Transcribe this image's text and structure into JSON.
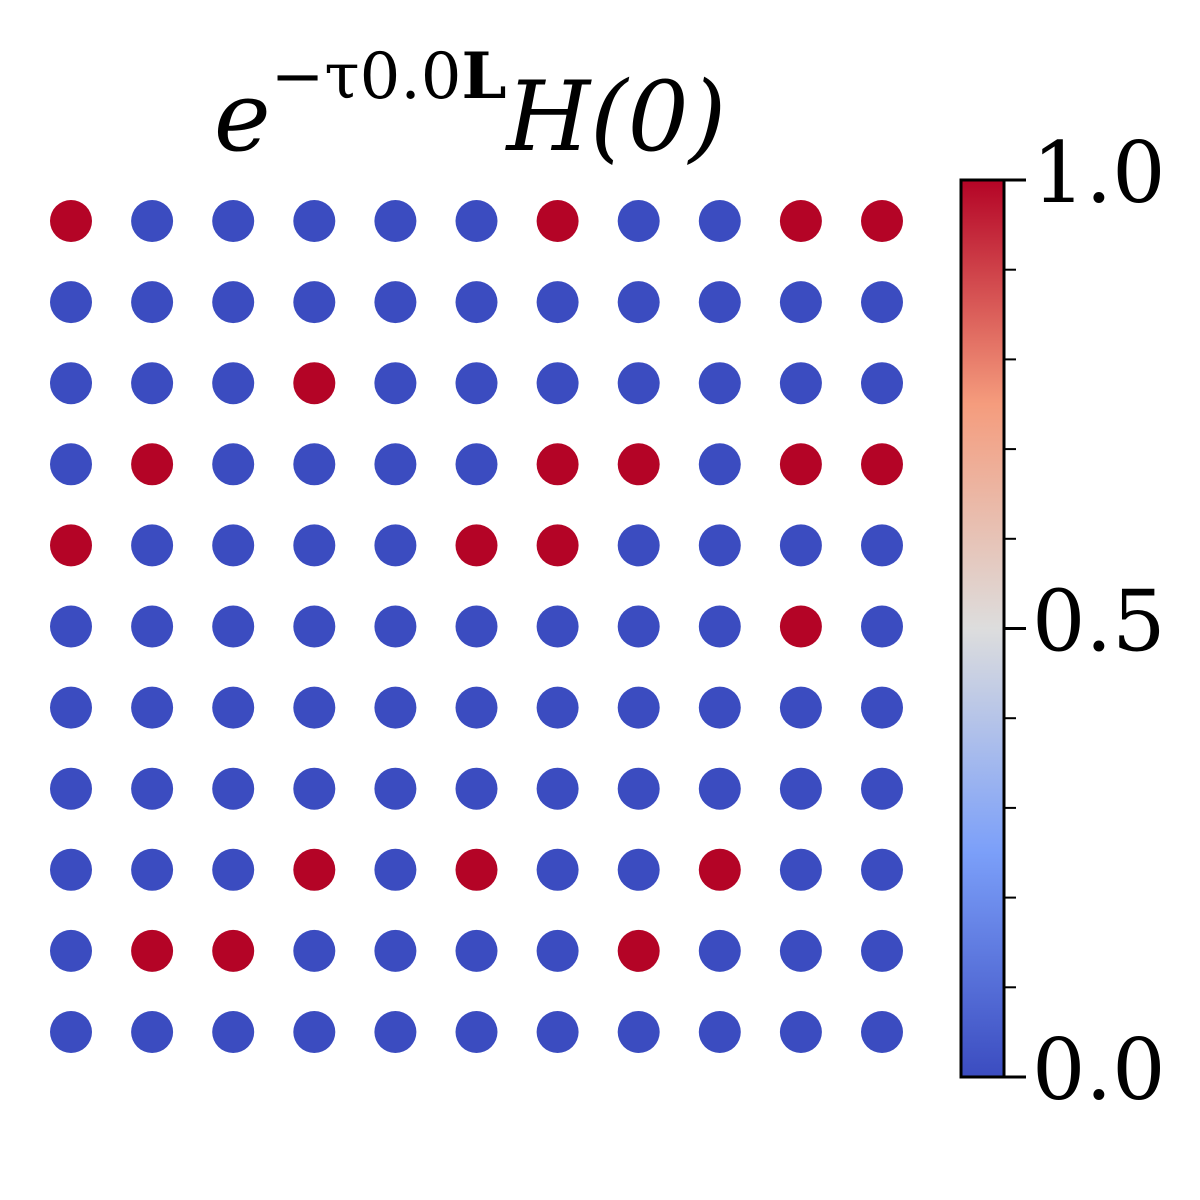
{
  "chart_data": {
    "type": "dot-grid",
    "title": [
      "e",
      "−τ0.0",
      "L",
      "H(0)"
    ],
    "values": [
      [
        1,
        0,
        0,
        0,
        0,
        0,
        1,
        0,
        0,
        1,
        1
      ],
      [
        0,
        0,
        0,
        0,
        0,
        0,
        0,
        0,
        0,
        0,
        0
      ],
      [
        0,
        0,
        0,
        1,
        0,
        0,
        0,
        0,
        0,
        0,
        0
      ],
      [
        0,
        1,
        0,
        0,
        0,
        0,
        1,
        1,
        0,
        1,
        1
      ],
      [
        1,
        0,
        0,
        0,
        0,
        1,
        1,
        0,
        0,
        0,
        0
      ],
      [
        0,
        0,
        0,
        0,
        0,
        0,
        0,
        0,
        0,
        1,
        0
      ],
      [
        0,
        0,
        0,
        0,
        0,
        0,
        0,
        0,
        0,
        0,
        0
      ],
      [
        0,
        0,
        0,
        0,
        0,
        0,
        0,
        0,
        0,
        0,
        0
      ],
      [
        0,
        0,
        0,
        1,
        0,
        1,
        0,
        0,
        1,
        0,
        0
      ],
      [
        0,
        1,
        1,
        0,
        0,
        0,
        0,
        1,
        0,
        0,
        0
      ],
      [
        0,
        0,
        0,
        0,
        0,
        0,
        0,
        0,
        0,
        0,
        0
      ]
    ],
    "colormap": "coolwarm",
    "colorbar": {
      "lim": [
        0,
        1
      ],
      "ticks": [
        {
          "value": 0,
          "label": "0.0"
        },
        {
          "value": 0.5,
          "label": "0.5"
        },
        {
          "value": 1,
          "label": "1.0"
        }
      ],
      "minor_ticks": [
        0.1,
        0.2,
        0.3,
        0.4,
        0.6,
        0.7,
        0.8,
        0.9
      ]
    }
  }
}
